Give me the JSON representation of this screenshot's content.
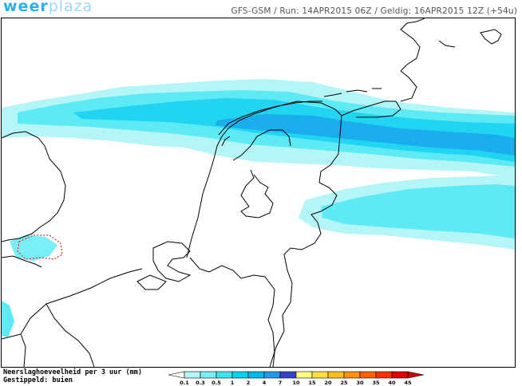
{
  "header": {
    "logo_main": "weer",
    "logo_accent": "plaza",
    "run_info": "GFS-GSM / Run: 14APR2015 06Z / Geldig: 16APR2015 12Z (+54u)"
  },
  "legend": {
    "title": "Neerslaghoeveelheid per 3 uur (mm)",
    "subtitle": "Gestippeld: buien",
    "ticks": [
      "0.1",
      "0.3",
      "0.5",
      "1",
      "2",
      "4",
      "7",
      "10",
      "15",
      "20",
      "25",
      "30",
      "35",
      "40",
      "45"
    ],
    "colors": [
      "#ffffff",
      "#b4f5f8",
      "#78eef5",
      "#3ce4f0",
      "#00d4f0",
      "#00b8ee",
      "#2299ea",
      "#3344cc",
      "#ffff80",
      "#ffe040",
      "#ffc020",
      "#ff9010",
      "#ff6000",
      "#ff3000",
      "#e00000",
      "#cc0000"
    ]
  },
  "map": {
    "precip_colors": {
      "light": "#b4f5f8",
      "medium": "#5eeaf4",
      "strong": "#20d4f2",
      "heavy": "#1aaeee"
    },
    "coastline_color": "#000000",
    "shower_outline_color": "#ee2222"
  }
}
